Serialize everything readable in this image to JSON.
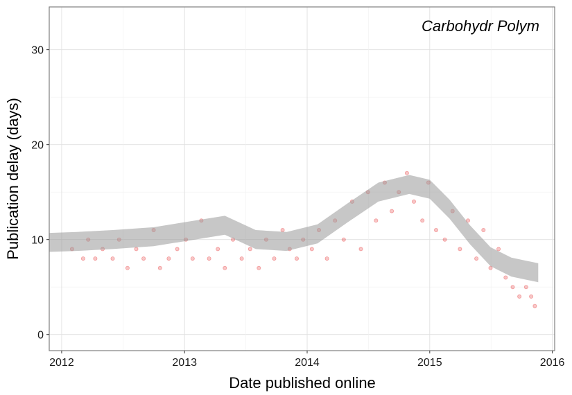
{
  "chart_data": {
    "type": "scatter",
    "xlabel": "Date published online",
    "ylabel": "Publication delay (days)",
    "annotation": "Carbohydr Polym",
    "x_tick_labels": [
      "2012",
      "2013",
      "2014",
      "2015",
      "2016"
    ],
    "x_ticks": [
      "2012-01-01",
      "2013-01-01",
      "2014-01-01",
      "2015-01-01",
      "2016-01-01"
    ],
    "y_ticks": [
      0,
      10,
      20,
      30
    ],
    "xlim": [
      "2011-11-25",
      "2016-01-08"
    ],
    "ylim": [
      -1.7,
      34.5
    ],
    "grid": true,
    "point_color": "#e31a1c",
    "point_alpha": 0.15,
    "smooth_color": "#999999",
    "series": [
      {
        "kind": "points",
        "x": [
          "2012-02-01",
          "2012-03-05",
          "2012-03-20",
          "2012-04-10",
          "2012-05-02",
          "2012-06-01",
          "2012-06-20",
          "2012-07-15",
          "2012-08-10",
          "2012-09-01",
          "2012-10-01",
          "2012-10-20",
          "2012-11-15",
          "2012-12-10",
          "2013-01-05",
          "2013-01-25",
          "2013-02-20",
          "2013-03-15",
          "2013-04-10",
          "2013-05-01",
          "2013-05-25",
          "2013-06-20",
          "2013-07-15",
          "2013-08-10",
          "2013-09-01",
          "2013-09-25",
          "2013-10-20",
          "2013-11-10",
          "2013-12-01",
          "2013-12-20",
          "2014-01-15",
          "2014-02-05",
          "2014-03-01",
          "2014-03-25",
          "2014-04-20",
          "2014-05-15",
          "2014-06-10",
          "2014-07-01",
          "2014-07-25",
          "2014-08-20",
          "2014-09-10",
          "2014-10-01",
          "2014-10-25",
          "2014-11-15",
          "2014-12-10",
          "2014-12-28",
          "2015-01-20",
          "2015-02-15",
          "2015-03-10",
          "2015-04-01",
          "2015-04-25",
          "2015-05-20",
          "2015-06-10",
          "2015-07-01",
          "2015-07-25",
          "2015-08-15",
          "2015-09-05",
          "2015-09-25",
          "2015-10-15",
          "2015-10-30",
          "2015-11-10"
        ],
        "y": [
          9,
          8,
          10,
          8,
          9,
          8,
          10,
          7,
          9,
          8,
          11,
          7,
          8,
          9,
          10,
          8,
          12,
          8,
          9,
          7,
          10,
          8,
          9,
          7,
          10,
          8,
          11,
          9,
          8,
          10,
          9,
          11,
          8,
          12,
          10,
          14,
          9,
          15,
          12,
          16,
          13,
          15,
          17,
          14,
          12,
          16,
          11,
          10,
          13,
          9,
          12,
          8,
          11,
          7,
          9,
          6,
          5,
          4,
          5,
          4,
          3
        ]
      },
      {
        "kind": "smooth",
        "x": [
          "2011-11-25",
          "2012-02-15",
          "2012-06-01",
          "2012-10-01",
          "2013-02-01",
          "2013-05-01",
          "2013-08-01",
          "2013-11-01",
          "2014-02-01",
          "2014-05-01",
          "2014-08-01",
          "2014-11-01",
          "2015-01-01",
          "2015-03-01",
          "2015-05-01",
          "2015-07-01",
          "2015-09-01",
          "2015-11-20"
        ],
        "y": [
          9.7,
          9.8,
          10.0,
          10.3,
          11.0,
          11.5,
          10.0,
          9.8,
          10.6,
          12.8,
          15.0,
          15.8,
          15.3,
          13.2,
          10.5,
          8.2,
          7.1,
          6.5
        ]
      }
    ]
  }
}
